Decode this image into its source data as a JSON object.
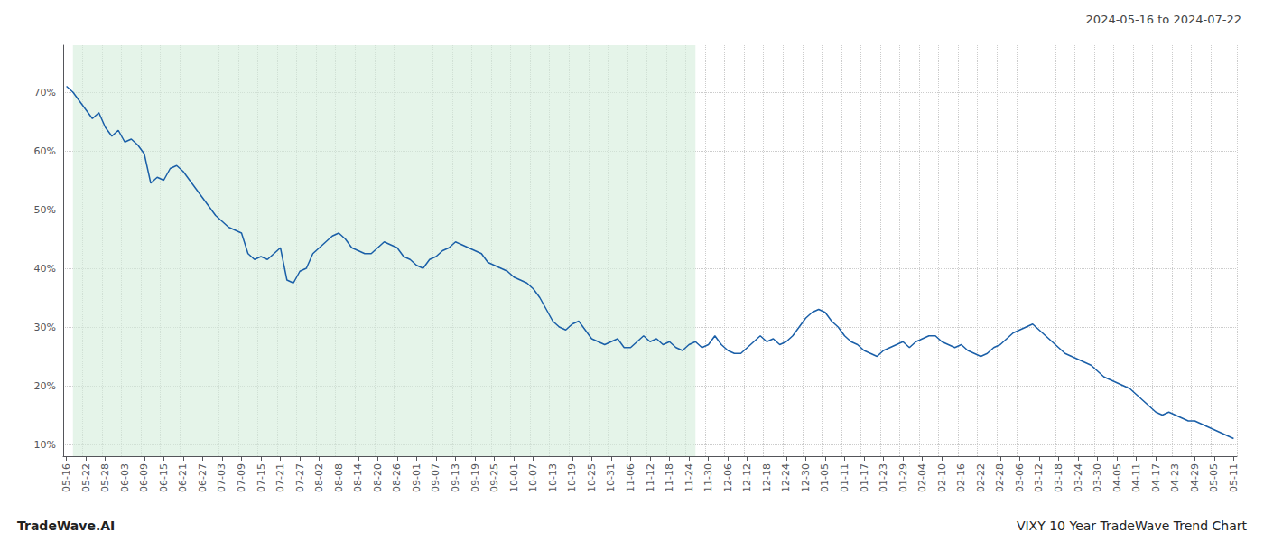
{
  "chart_data": {
    "type": "line",
    "title": "VIXY 10 Year TradeWave Trend Chart",
    "subtitle": "2024-05-16 to 2024-07-22",
    "annotations": [
      "TradeWave.AI"
    ],
    "color": "#1a5fa8",
    "grid": true,
    "line_style": "solid",
    "shaded_range": {
      "from": 1,
      "to": 97,
      "color": "#d4edda"
    },
    "ylim": [
      8,
      78
    ],
    "yticks": [
      {
        "value": 10,
        "label": "10%"
      },
      {
        "value": 20,
        "label": "20%"
      },
      {
        "value": 30,
        "label": "30%"
      },
      {
        "value": 40,
        "label": "40%"
      },
      {
        "value": 50,
        "label": "50%"
      },
      {
        "value": 60,
        "label": "60%"
      },
      {
        "value": 70,
        "label": "70%"
      }
    ],
    "categories": [
      "05-16",
      null,
      null,
      "05-22",
      null,
      null,
      "05-28",
      null,
      null,
      "06-03",
      null,
      null,
      "06-09",
      null,
      null,
      "06-15",
      null,
      null,
      "06-21",
      null,
      null,
      "06-27",
      null,
      null,
      "07-03",
      null,
      null,
      "07-09",
      null,
      null,
      "07-15",
      null,
      null,
      "07-21",
      null,
      null,
      "07-27",
      null,
      null,
      "08-02",
      null,
      null,
      "08-08",
      null,
      null,
      "08-14",
      null,
      null,
      "08-20",
      null,
      null,
      "08-26",
      null,
      null,
      "09-01",
      null,
      null,
      "09-07",
      null,
      null,
      "09-13",
      null,
      null,
      "09-19",
      null,
      null,
      "09-25",
      null,
      null,
      "10-01",
      null,
      null,
      "10-07",
      null,
      null,
      "10-13",
      null,
      null,
      "10-19",
      null,
      null,
      "10-25",
      null,
      null,
      "10-31",
      null,
      null,
      "11-06",
      null,
      null,
      "11-12",
      null,
      null,
      "11-18",
      null,
      null,
      "11-24",
      null,
      null,
      "11-30",
      null,
      null,
      "12-06",
      null,
      null,
      "12-12",
      null,
      null,
      "12-18",
      null,
      null,
      "12-24",
      null,
      null,
      "12-30",
      null,
      null,
      "01-05",
      null,
      null,
      "01-11",
      null,
      null,
      "01-17",
      null,
      null,
      "01-23",
      null,
      null,
      "01-29",
      null,
      null,
      "02-04",
      null,
      null,
      "02-10",
      null,
      null,
      "02-16",
      null,
      null,
      "02-22",
      null,
      null,
      "02-28",
      null,
      null,
      "03-06",
      null,
      null,
      "03-12",
      null,
      null,
      "03-18",
      null,
      null,
      "03-24",
      null,
      null,
      "03-30",
      null,
      null,
      "04-05",
      null,
      null,
      "04-11",
      null,
      null,
      "04-17",
      null,
      null,
      "04-23",
      null,
      null,
      "04-29",
      null,
      null,
      "05-05",
      null,
      null,
      "05-11"
    ],
    "values": [
      71.0,
      70.0,
      68.5,
      67.0,
      65.5,
      66.5,
      64.0,
      62.5,
      63.5,
      61.5,
      62.0,
      61.0,
      59.5,
      54.5,
      55.5,
      55.0,
      57.0,
      57.5,
      56.5,
      55.0,
      53.5,
      52.0,
      50.5,
      49.0,
      48.0,
      47.0,
      46.5,
      46.0,
      42.5,
      41.5,
      42.0,
      41.5,
      42.5,
      43.5,
      38.0,
      37.5,
      39.5,
      40.0,
      42.5,
      43.5,
      44.5,
      45.5,
      46.0,
      45.0,
      43.5,
      43.0,
      42.5,
      42.5,
      43.5,
      44.5,
      44.0,
      43.5,
      42.0,
      41.5,
      40.5,
      40.0,
      41.5,
      42.0,
      43.0,
      43.5,
      44.5,
      44.0,
      43.5,
      43.0,
      42.5,
      41.0,
      40.5,
      40.0,
      39.5,
      38.5,
      38.0,
      37.5,
      36.5,
      35.0,
      33.0,
      31.0,
      30.0,
      29.5,
      30.5,
      31.0,
      29.5,
      28.0,
      27.5,
      27.0,
      27.5,
      28.0,
      26.5,
      26.5,
      27.5,
      28.5,
      27.5,
      28.0,
      27.0,
      27.5,
      26.5,
      26.0,
      27.0,
      27.5,
      26.5,
      27.0,
      28.5,
      27.0,
      26.0,
      25.5,
      25.5,
      26.5,
      27.5,
      28.5,
      27.5,
      28.0,
      27.0,
      27.5,
      28.5,
      30.0,
      31.5,
      32.5,
      33.0,
      32.5,
      31.0,
      30.0,
      28.5,
      27.5,
      27.0,
      26.0,
      25.5,
      25.0,
      26.0,
      26.5,
      27.0,
      27.5,
      26.5,
      27.5,
      28.0,
      28.5,
      28.5,
      27.5,
      27.0,
      26.5,
      27.0,
      26.0,
      25.5,
      25.0,
      25.5,
      26.5,
      27.0,
      28.0,
      29.0,
      29.5,
      30.0,
      30.5,
      29.5,
      28.5,
      27.5,
      26.5,
      25.5,
      25.0,
      24.5,
      24.0,
      23.5,
      22.5,
      21.5,
      21.0,
      20.5,
      20.0,
      19.5,
      18.5,
      17.5,
      16.5,
      15.5,
      15.0,
      15.5,
      15.0,
      14.5,
      14.0,
      14.0,
      13.5,
      13.0,
      12.5,
      12.0,
      11.5,
      11.0
    ]
  }
}
